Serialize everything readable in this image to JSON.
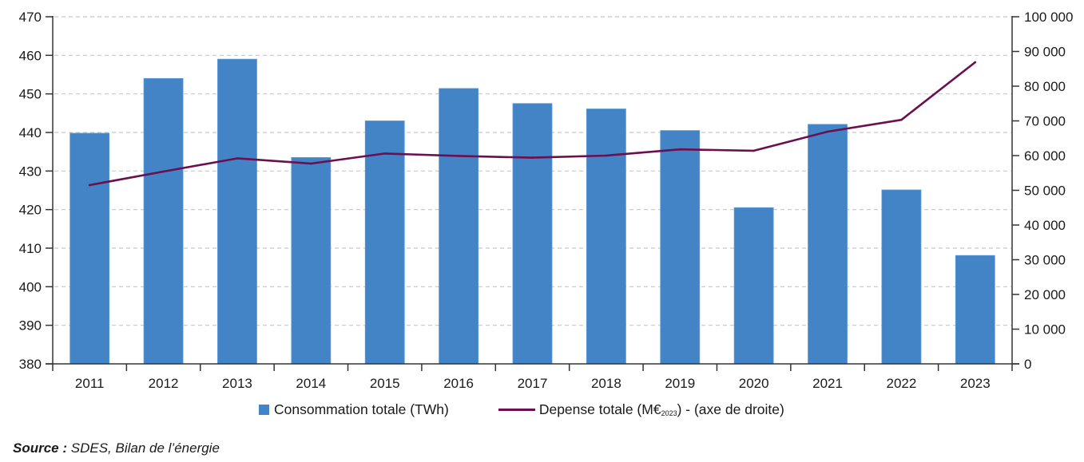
{
  "chart_data": {
    "type": "bar",
    "title": "",
    "categories": [
      "2011",
      "2012",
      "2013",
      "2014",
      "2015",
      "2016",
      "2017",
      "2018",
      "2019",
      "2020",
      "2021",
      "2022",
      "2023"
    ],
    "series": [
      {
        "name": "Consommation totale (TWh)",
        "type": "bar",
        "axis": "left",
        "color": "#4384c6",
        "values": [
          439.8,
          454.0,
          459.0,
          433.5,
          443.0,
          451.4,
          447.5,
          446.1,
          440.5,
          420.5,
          442.1,
          425.1,
          408.1
        ]
      },
      {
        "name": "Depense totale (M€2023) - (axe de droite)",
        "type": "line",
        "axis": "right",
        "color": "#6b0f4e",
        "values": [
          51500,
          55400,
          59200,
          57700,
          60600,
          59900,
          59400,
          60000,
          61800,
          61400,
          66900,
          70300,
          86900
        ]
      }
    ],
    "y_left": {
      "label": "",
      "range": [
        380,
        470
      ],
      "ticks": [
        380,
        390,
        400,
        410,
        420,
        430,
        440,
        450,
        460,
        470
      ],
      "tick_labels": [
        "380",
        "390",
        "400",
        "410",
        "420",
        "430",
        "440",
        "450",
        "460",
        "470"
      ]
    },
    "y_right": {
      "label": "",
      "range": [
        0,
        100000
      ],
      "ticks": [
        0,
        10000,
        20000,
        30000,
        40000,
        50000,
        60000,
        70000,
        80000,
        90000,
        100000
      ],
      "tick_labels": [
        "0",
        "10 000",
        "20 000",
        "30 000",
        "40 000",
        "50 000",
        "60 000",
        "70 000",
        "80 000",
        "90 000",
        "100 000"
      ]
    },
    "grid": "horizontal dashed (left axis)",
    "legend_position": "bottom-center"
  },
  "legend": {
    "bar_label": "Consommation totale (TWh)",
    "line_label_pre": "Depense totale (M€",
    "line_label_sub": "2023",
    "line_label_post": ") - (axe de droite)"
  },
  "source": {
    "label": "Source :",
    "text": " SDES, Bilan de l’énergie"
  }
}
